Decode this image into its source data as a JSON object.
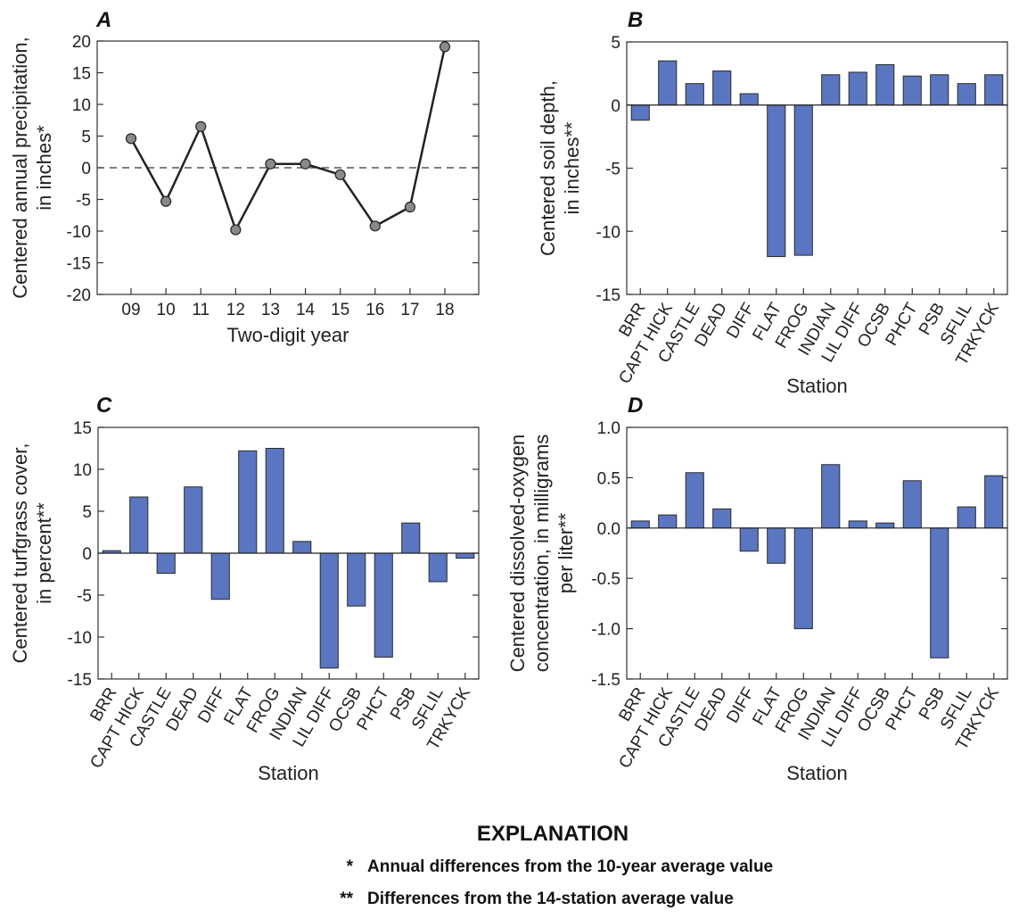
{
  "chart_data": [
    {
      "id": "A",
      "type": "line",
      "panel_label": "A",
      "x": [
        "09",
        "10",
        "11",
        "12",
        "13",
        "14",
        "15",
        "16",
        "17",
        "18"
      ],
      "values": [
        4.6,
        -5.3,
        6.5,
        -9.8,
        0.6,
        0.6,
        -1.1,
        -9.2,
        -6.2,
        19.1
      ],
      "xlabel": "Two-digit year",
      "ylabel": [
        "Centered annual precipitation,",
        "in inches*"
      ],
      "ylim": [
        -20,
        20
      ],
      "yticks": [
        20,
        15,
        10,
        5,
        0,
        -5,
        -10,
        -15,
        -20
      ],
      "reference_line": 0,
      "series_color": "#222222",
      "marker_color": "#8a8a8a"
    },
    {
      "id": "B",
      "type": "bar",
      "panel_label": "B",
      "categories": [
        "BRR",
        "CAPT HICK",
        "CASTLE",
        "DEAD",
        "DIFF",
        "FLAT",
        "FROG",
        "INDIAN",
        "LIL DIFF",
        "OCSB",
        "PHCT",
        "PSB",
        "SFLIL",
        "TRKYCK"
      ],
      "values": [
        -1.2,
        3.5,
        1.7,
        2.7,
        0.9,
        -12.0,
        -11.9,
        2.4,
        2.6,
        3.2,
        2.3,
        2.4,
        1.7,
        2.4
      ],
      "xlabel": "Station",
      "ylabel": [
        "Centered soil depth,",
        "in inches**"
      ],
      "ylim": [
        -15,
        5
      ],
      "yticks": [
        5,
        0,
        -5,
        -10,
        -15
      ],
      "bar_color": "#5a76c0"
    },
    {
      "id": "C",
      "type": "bar",
      "panel_label": "C",
      "categories": [
        "BRR",
        "CAPT HICK",
        "CASTLE",
        "DEAD",
        "DIFF",
        "FLAT",
        "FROG",
        "INDIAN",
        "LIL DIFF",
        "OCSB",
        "PHCT",
        "PSB",
        "SFLIL",
        "TRKYCK"
      ],
      "values": [
        0.3,
        6.7,
        -2.4,
        7.9,
        -5.5,
        12.2,
        12.5,
        1.4,
        -13.7,
        -6.3,
        -12.4,
        3.6,
        -3.4,
        -0.6
      ],
      "xlabel": "Station",
      "ylabel": [
        "Centered turfgrass cover,",
        "in percent**"
      ],
      "ylim": [
        -15,
        15
      ],
      "yticks": [
        15,
        10,
        5,
        0,
        -5,
        -10,
        -15
      ],
      "bar_color": "#5a76c0"
    },
    {
      "id": "D",
      "type": "bar",
      "panel_label": "D",
      "categories": [
        "BRR",
        "CAPT HICK",
        "CASTLE",
        "DEAD",
        "DIFF",
        "FLAT",
        "FROG",
        "INDIAN",
        "LIL DIFF",
        "OCSB",
        "PHCT",
        "PSB",
        "SFLIL",
        "TRKYCK"
      ],
      "values": [
        0.07,
        0.13,
        0.55,
        0.19,
        -0.23,
        -0.35,
        -1.0,
        0.63,
        0.07,
        0.05,
        0.47,
        -1.29,
        0.21,
        0.52
      ],
      "xlabel": "Station",
      "ylabel": [
        "Centered dissolved-oxygen",
        "concentration, in milligrams",
        "per liter**"
      ],
      "ylim": [
        -1.5,
        1.0
      ],
      "yticks": [
        "1.0",
        "0.5",
        "0.0",
        "-0.5",
        "-1.0",
        "-1.5"
      ],
      "bar_color": "#5a76c0"
    }
  ],
  "explanation": {
    "title": "EXPLANATION",
    "items": [
      {
        "symbol": "*",
        "text": "Annual differences from the 10-year average value"
      },
      {
        "symbol": "**",
        "text": "Differences from the 14-station average value"
      }
    ]
  }
}
